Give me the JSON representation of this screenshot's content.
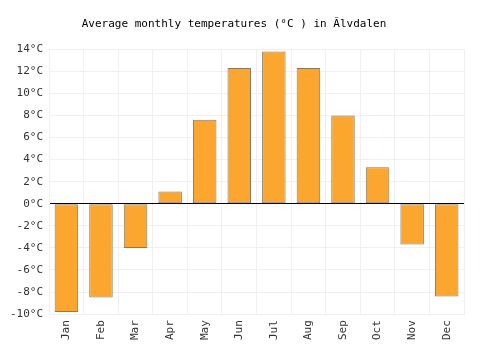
{
  "chart_data": {
    "type": "bar",
    "title": "Average monthly temperatures (°C ) in Ãlvdalen",
    "categories": [
      "Jan",
      "Feb",
      "Mar",
      "Apr",
      "May",
      "Jun",
      "Jul",
      "Aug",
      "Sep",
      "Oct",
      "Nov",
      "Dec"
    ],
    "values": [
      -9.8,
      -8.5,
      -4,
      1.1,
      7.6,
      12.3,
      13.8,
      12.3,
      8,
      3.3,
      -3.7,
      -8.4
    ],
    "color": "#fba62f",
    "ylim": [
      -10,
      14
    ],
    "yticks": [
      {
        "value": -10,
        "label": "-10°C"
      },
      {
        "value": -8,
        "label": "-8°C"
      },
      {
        "value": -6,
        "label": "-6°C"
      },
      {
        "value": -4,
        "label": "-4°C"
      },
      {
        "value": -2,
        "label": "-2°C"
      },
      {
        "value": 0,
        "label": "0°C"
      },
      {
        "value": 2,
        "label": "2°C"
      },
      {
        "value": 4,
        "label": "4°C"
      },
      {
        "value": 6,
        "label": "6°C"
      },
      {
        "value": 8,
        "label": "8°C"
      },
      {
        "value": 10,
        "label": "10°C"
      },
      {
        "value": 12,
        "label": "12°C"
      },
      {
        "value": 14,
        "label": "14°C"
      }
    ],
    "grid": true
  }
}
